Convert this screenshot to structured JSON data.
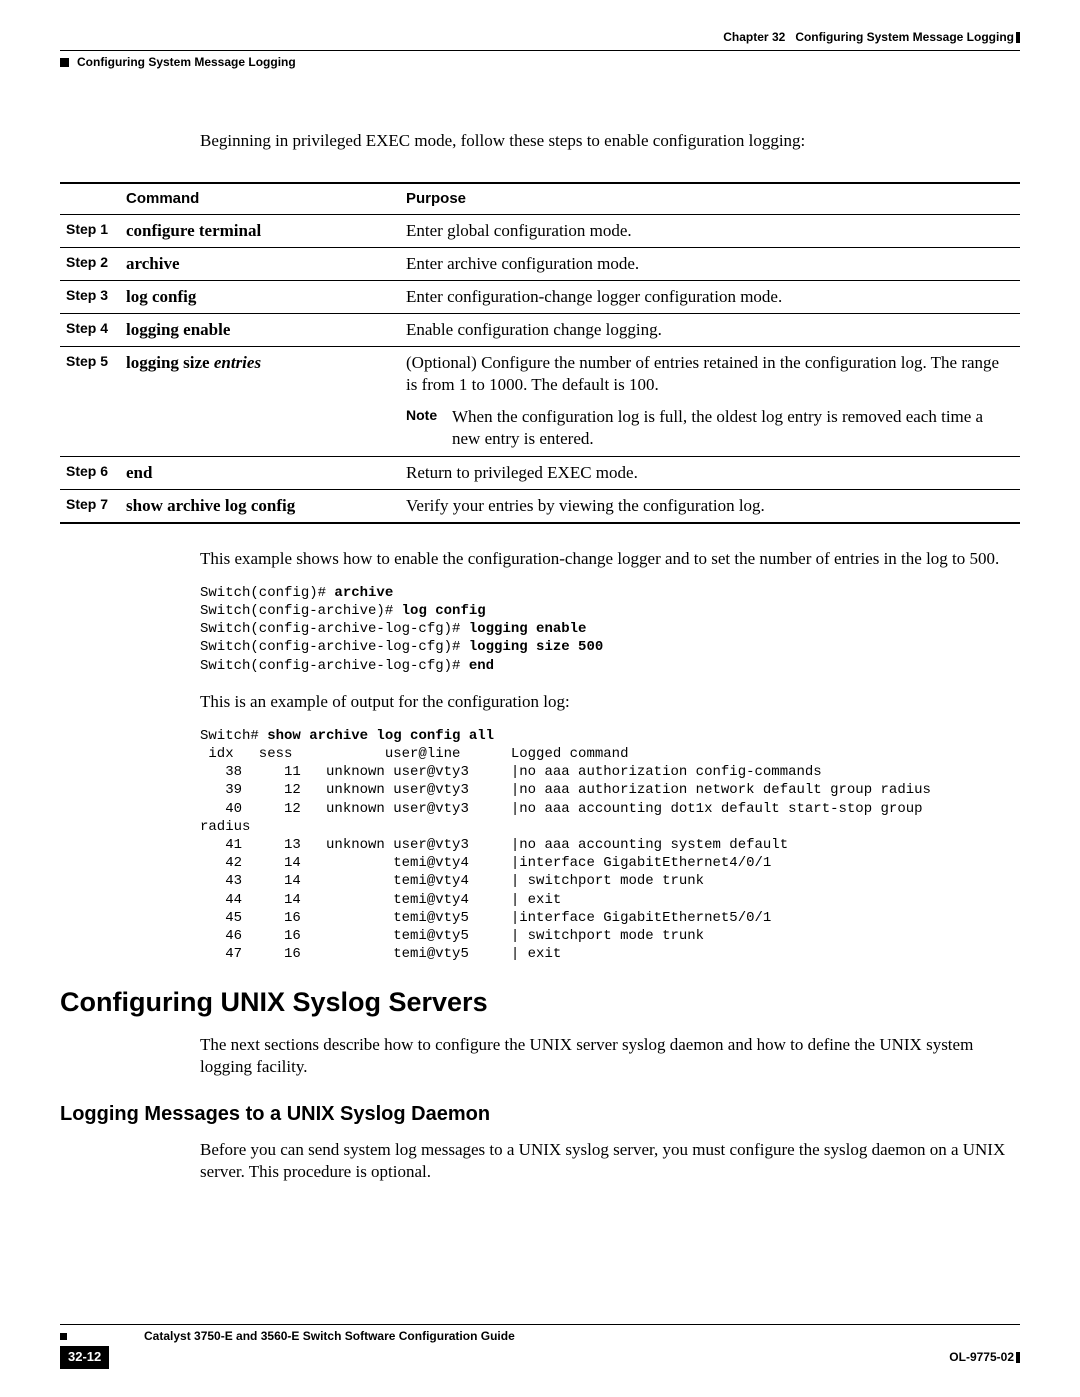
{
  "header": {
    "chapter": "Chapter 32",
    "chapter_title": "Configuring System Message Logging",
    "section_title": "Configuring System Message Logging"
  },
  "intro": "Beginning in privileged EXEC mode, follow these steps to enable configuration logging:",
  "table": {
    "headers": {
      "command": "Command",
      "purpose": "Purpose"
    },
    "rows": [
      {
        "step": "Step 1",
        "command": "configure terminal",
        "purpose": "Enter global configuration mode."
      },
      {
        "step": "Step 2",
        "command": "archive",
        "purpose": "Enter archive configuration mode."
      },
      {
        "step": "Step 3",
        "command": "log config",
        "purpose": "Enter configuration-change logger configuration mode."
      },
      {
        "step": "Step 4",
        "command": "logging enable",
        "purpose": "Enable configuration change logging."
      },
      {
        "step": "Step 5",
        "command_prefix": "logging size ",
        "command_italic": "entries",
        "purpose": "(Optional) Configure the number of entries retained in the configuration log. The range is from 1 to 1000. The default is 100.",
        "note_label": "Note",
        "note_text": "When the configuration log is full, the oldest log entry is removed each time a new entry is entered."
      },
      {
        "step": "Step 6",
        "command": "end",
        "purpose": "Return to privileged EXEC mode."
      },
      {
        "step": "Step 7",
        "command": "show archive log config",
        "purpose": "Verify your entries by viewing the configuration log."
      }
    ]
  },
  "example_text": "This example shows how to enable the configuration-change logger and to set the number of entries in the log to 500.",
  "code1": {
    "l1p": "Switch(config)# ",
    "l1b": "archive",
    "l2p": "Switch(config-archive)# ",
    "l2b": "log config",
    "l3p": "Switch(config-archive-log-cfg)# ",
    "l3b": "logging enable",
    "l4p": "Switch(config-archive-log-cfg)# ",
    "l4b": "logging size 500",
    "l5p": "Switch(config-archive-log-cfg)# ",
    "l5b": "end"
  },
  "output_text": "This is an example of output for the configuration log:",
  "code2": {
    "l1p": "Switch# ",
    "l1b": "show archive log config all",
    "body": " idx   sess           user@line      Logged command\n   38     11   unknown user@vty3     |no aaa authorization config-commands\n   39     12   unknown user@vty3     |no aaa authorization network default group radius\n   40     12   unknown user@vty3     |no aaa accounting dot1x default start-stop group\nradius\n   41     13   unknown user@vty3     |no aaa accounting system default\n   42     14           temi@vty4     |interface GigabitEthernet4/0/1\n   43     14           temi@vty4     | switchport mode trunk\n   44     14           temi@vty4     | exit\n   45     16           temi@vty5     |interface GigabitEthernet5/0/1\n   46     16           temi@vty5     | switchport mode trunk\n   47     16           temi@vty5     | exit"
  },
  "heading_unix": "Configuring UNIX Syslog Servers",
  "unix_para": "The next sections describe how to configure the UNIX server syslog daemon and how to define the UNIX system logging facility.",
  "heading_daemon": "Logging Messages to a UNIX Syslog Daemon",
  "daemon_para": "Before you can send system log messages to a UNIX syslog server, you must configure the syslog daemon on a UNIX server. This procedure is optional.",
  "footer": {
    "guide_title": "Catalyst 3750-E and 3560-E Switch Software Configuration Guide",
    "page_number": "32-12",
    "doc_id": "OL-9775-02"
  }
}
